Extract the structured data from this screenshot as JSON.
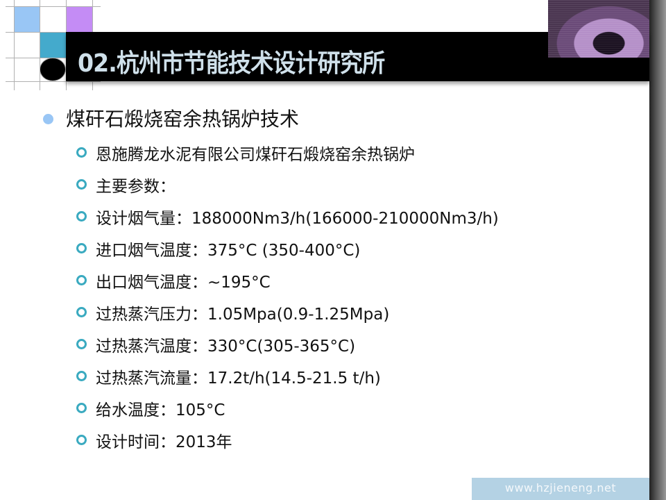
{
  "slide": {
    "title": "02.杭州市节能技术设计研究所",
    "heading": "煤矸石煅烧窑余热锅炉技术",
    "items": [
      "恩施腾龙水泥有限公司煤矸石煅烧窑余热锅炉",
      "主要参数：",
      "设计烟气量：188000Nm3/h(166000-210000Nm3/h)",
      "进口烟气温度：375°C (350-400°C)",
      "出口烟气温度：~195°C",
      "过热蒸汽压力：1.05Mpa(0.9-1.25Mpa)",
      "过热蒸汽温度：330°C(305-365°C)",
      "过热蒸汽流量：17.2t/h(14.5-21.5 t/h)",
      "给水温度：105°C",
      "设计时间：2013年"
    ],
    "footer": "www.hzjieneng.net"
  },
  "colors": {
    "title_bar": "#000000",
    "title_text": "#cfe0ea",
    "bullet_level1": "#99c6f5",
    "bullet_level2": "#3aaac0",
    "footer_bg": "#b4d2e4",
    "square_light_blue": "#99c6f5",
    "square_purple": "#c48cf5",
    "square_teal": "#44aacc"
  }
}
